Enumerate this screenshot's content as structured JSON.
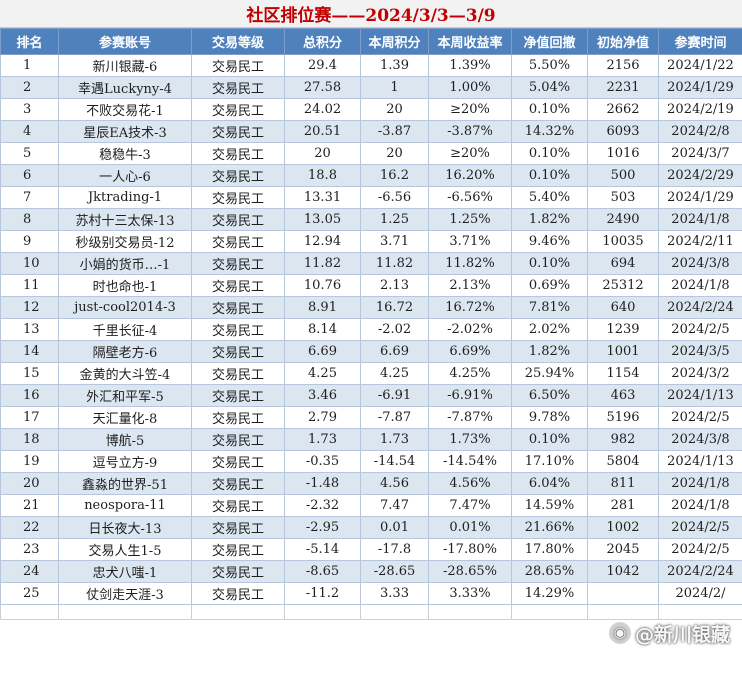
{
  "title": "社区排位赛——2024/3/3—3/9",
  "colors": {
    "header_bg": "#4f81bd",
    "title_text": "#c00000",
    "stripe": "#dce6f1"
  },
  "columns": [
    "排名",
    "参赛账号",
    "交易等级",
    "总积分",
    "本周积分",
    "本周收益率",
    "净值回撤",
    "初始净值",
    "参赛时间"
  ],
  "rows": [
    [
      "1",
      "新川银藏-6",
      "交易民工",
      "29.4",
      "1.39",
      "1.39%",
      "5.50%",
      "2156",
      "2024/1/22"
    ],
    [
      "2",
      "幸遇Luckyny-4",
      "交易民工",
      "27.58",
      "1",
      "1.00%",
      "5.04%",
      "2231",
      "2024/1/29"
    ],
    [
      "3",
      "不败交易花-1",
      "交易民工",
      "24.02",
      "20",
      "≥20%",
      "0.10%",
      "2662",
      "2024/2/19"
    ],
    [
      "4",
      "星辰EA技术-3",
      "交易民工",
      "20.51",
      "-3.87",
      "-3.87%",
      "14.32%",
      "6093",
      "2024/2/8"
    ],
    [
      "5",
      "稳稳牛-3",
      "交易民工",
      "20",
      "20",
      "≥20%",
      "0.10%",
      "1016",
      "2024/3/7"
    ],
    [
      "6",
      "一人心-6",
      "交易民工",
      "18.8",
      "16.2",
      "16.20%",
      "0.10%",
      "500",
      "2024/2/29"
    ],
    [
      "7",
      "Jktrading-1",
      "交易民工",
      "13.31",
      "-6.56",
      "-6.56%",
      "5.40%",
      "503",
      "2024/1/29"
    ],
    [
      "8",
      "苏村十三太保-13",
      "交易民工",
      "13.05",
      "1.25",
      "1.25%",
      "1.82%",
      "2490",
      "2024/1/8"
    ],
    [
      "9",
      "秒级别交易员-12",
      "交易民工",
      "12.94",
      "3.71",
      "3.71%",
      "9.46%",
      "10035",
      "2024/2/11"
    ],
    [
      "10",
      "小娟的货币…-1",
      "交易民工",
      "11.82",
      "11.82",
      "11.82%",
      "0.10%",
      "694",
      "2024/3/8"
    ],
    [
      "11",
      "时也命也-1",
      "交易民工",
      "10.76",
      "2.13",
      "2.13%",
      "0.69%",
      "25312",
      "2024/1/8"
    ],
    [
      "12",
      "just-cool2014-3",
      "交易民工",
      "8.91",
      "16.72",
      "16.72%",
      "7.81%",
      "640",
      "2024/2/24"
    ],
    [
      "13",
      "千里长征-4",
      "交易民工",
      "8.14",
      "-2.02",
      "-2.02%",
      "2.02%",
      "1239",
      "2024/2/5"
    ],
    [
      "14",
      "隔壁老方-6",
      "交易民工",
      "6.69",
      "6.69",
      "6.69%",
      "1.82%",
      "1001",
      "2024/3/5"
    ],
    [
      "15",
      "金黄的大斗笠-4",
      "交易民工",
      "4.25",
      "4.25",
      "4.25%",
      "25.94%",
      "1154",
      "2024/3/2"
    ],
    [
      "16",
      "外汇和平军-5",
      "交易民工",
      "3.46",
      "-6.91",
      "-6.91%",
      "6.50%",
      "463",
      "2024/1/13"
    ],
    [
      "17",
      "天汇量化-8",
      "交易民工",
      "2.79",
      "-7.87",
      "-7.87%",
      "9.78%",
      "5196",
      "2024/2/5"
    ],
    [
      "18",
      "博航-5",
      "交易民工",
      "1.73",
      "1.73",
      "1.73%",
      "0.10%",
      "982",
      "2024/3/8"
    ],
    [
      "19",
      "逗号立方-9",
      "交易民工",
      "-0.35",
      "-14.54",
      "-14.54%",
      "17.10%",
      "5804",
      "2024/1/13"
    ],
    [
      "20",
      "鑫淼的世界-51",
      "交易民工",
      "-1.48",
      "4.56",
      "4.56%",
      "6.04%",
      "811",
      "2024/1/8"
    ],
    [
      "21",
      "neospora-11",
      "交易民工",
      "-2.32",
      "7.47",
      "7.47%",
      "14.59%",
      "281",
      "2024/1/8"
    ],
    [
      "22",
      "日长夜大-13",
      "交易民工",
      "-2.95",
      "0.01",
      "0.01%",
      "21.66%",
      "1002",
      "2024/2/5"
    ],
    [
      "23",
      "交易人生1-5",
      "交易民工",
      "-5.14",
      "-17.8",
      "-17.80%",
      "17.80%",
      "2045",
      "2024/2/5"
    ],
    [
      "24",
      "忠犬八嗤-1",
      "交易民工",
      "-8.65",
      "-28.65",
      "-28.65%",
      "28.65%",
      "1042",
      "2024/2/24"
    ],
    [
      "25",
      "仗剑走天涯-3",
      "交易民工",
      "-11.2",
      "3.33",
      "3.33%",
      "14.29%",
      "",
      "2024/2/"
    ]
  ],
  "watermark": {
    "text": "@新川银藏",
    "icon": "weibo-logo-icon"
  }
}
